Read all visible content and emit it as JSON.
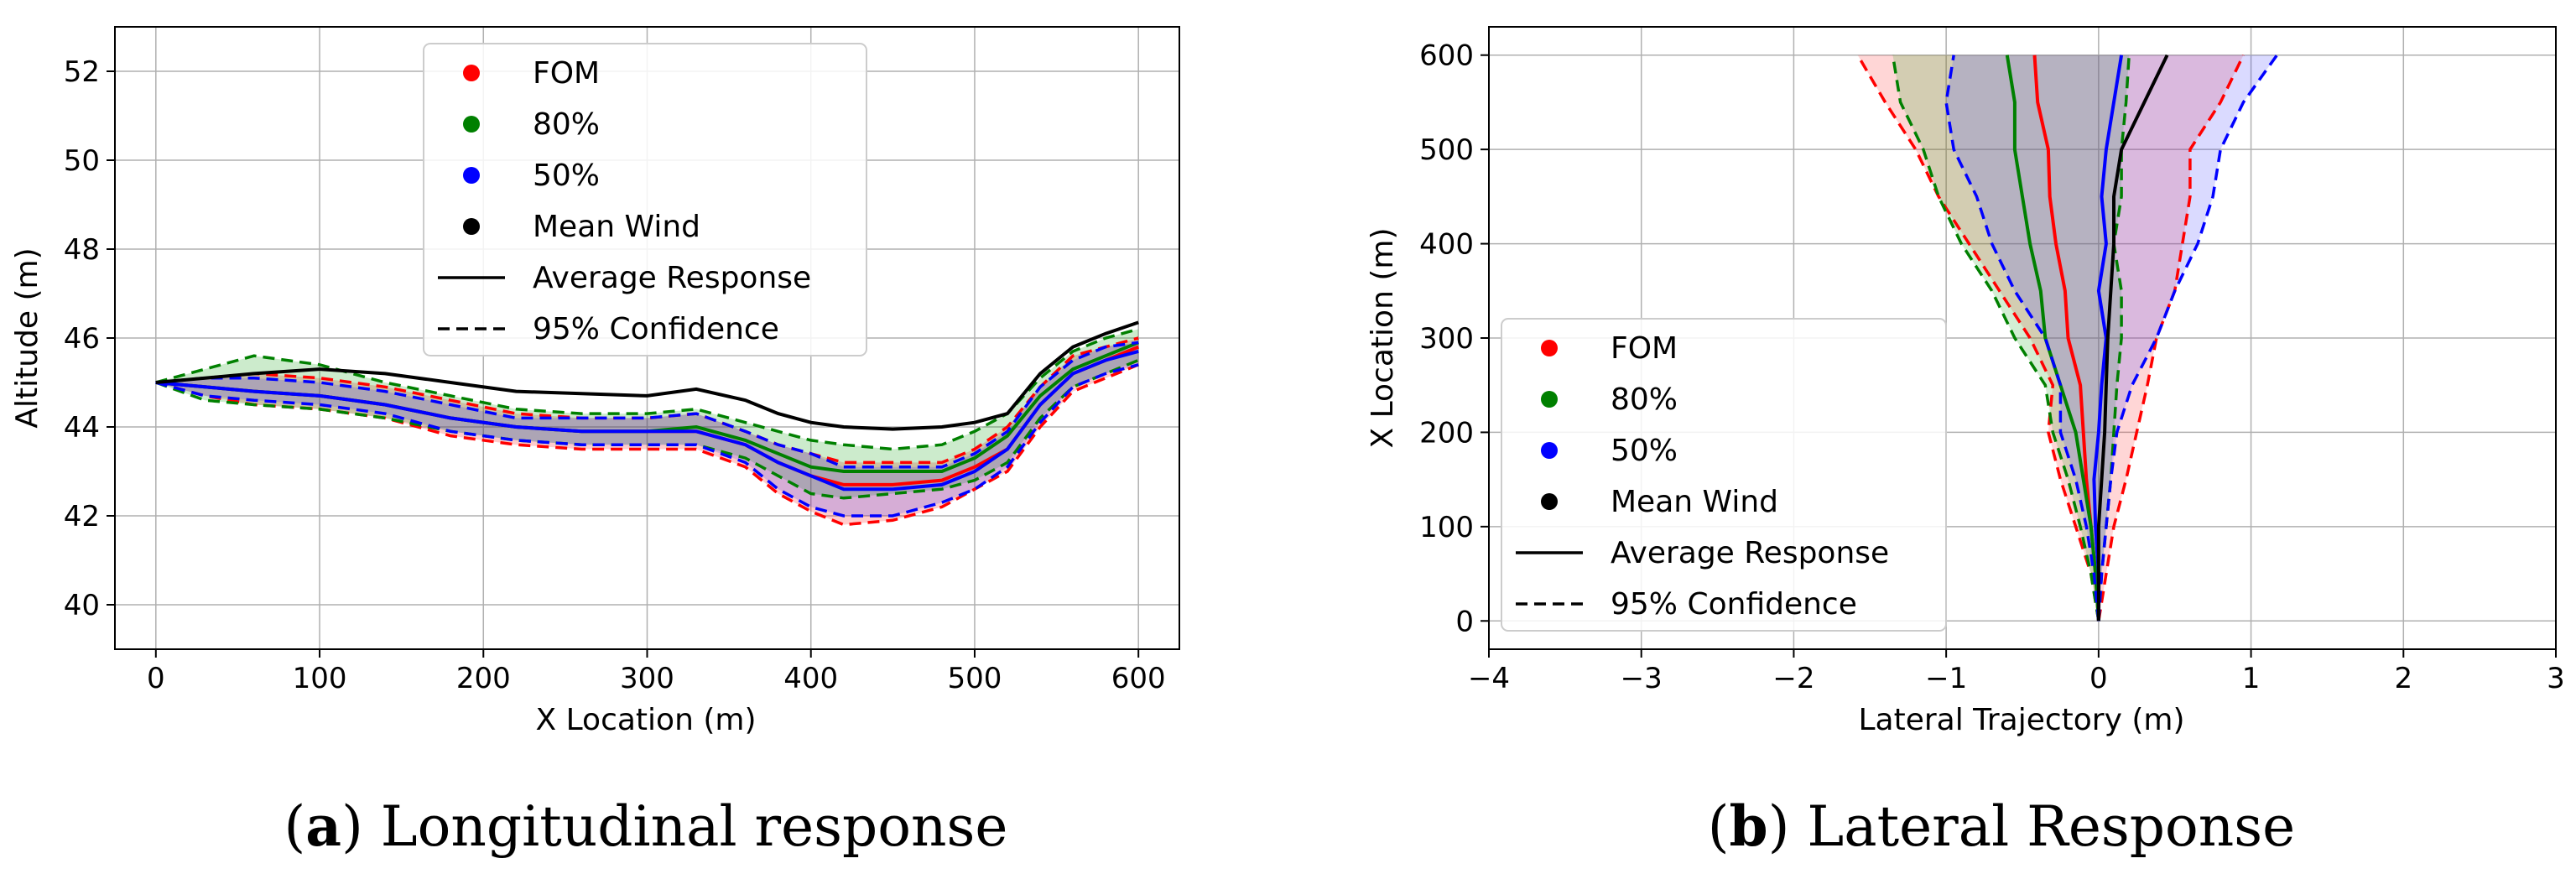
{
  "chart_data": [
    {
      "type": "line",
      "id": "longitudinal",
      "xlabel": "X Location (m)",
      "ylabel": "Altitude (m)",
      "xlim": [
        -25,
        625
      ],
      "ylim": [
        39,
        53
      ],
      "xticks": [
        0,
        100,
        200,
        300,
        400,
        500,
        600
      ],
      "yticks": [
        40,
        42,
        44,
        46,
        48,
        50,
        52
      ],
      "grid": true,
      "legend_position": "top-center",
      "caption_letter": "a",
      "caption_text": " Longitudinal response",
      "legend": [
        {
          "label": "FOM",
          "kind": "dot",
          "color": "#ff0000"
        },
        {
          "label": "80%",
          "kind": "dot",
          "color": "#008000"
        },
        {
          "label": "50%",
          "kind": "dot",
          "color": "#0000ff"
        },
        {
          "label": "Mean Wind",
          "kind": "dot",
          "color": "#000000"
        },
        {
          "label": "Average Response",
          "kind": "solid",
          "color": "#000000"
        },
        {
          "label": "95% Confidence",
          "kind": "dashed",
          "color": "#000000"
        }
      ],
      "x": [
        0,
        30,
        60,
        100,
        140,
        180,
        220,
        260,
        300,
        330,
        360,
        380,
        400,
        420,
        450,
        480,
        500,
        520,
        540,
        560,
        580,
        600
      ],
      "series": [
        {
          "name": "FOM",
          "color": "#ff0000",
          "fill": "#ff0000",
          "mean": [
            45.0,
            44.9,
            44.8,
            44.7,
            44.5,
            44.2,
            44.0,
            43.9,
            43.9,
            43.9,
            43.6,
            43.2,
            42.9,
            42.7,
            42.7,
            42.8,
            43.1,
            43.5,
            44.5,
            45.2,
            45.5,
            45.8
          ],
          "upper": [
            45.0,
            45.1,
            45.2,
            45.1,
            44.9,
            44.6,
            44.3,
            44.2,
            44.2,
            44.3,
            43.9,
            43.6,
            43.4,
            43.2,
            43.2,
            43.2,
            43.5,
            44.0,
            44.9,
            45.6,
            45.8,
            46.0
          ],
          "lower": [
            45.0,
            44.7,
            44.5,
            44.4,
            44.2,
            43.8,
            43.6,
            43.5,
            43.5,
            43.5,
            43.1,
            42.5,
            42.1,
            41.8,
            41.9,
            42.2,
            42.6,
            43.0,
            44.0,
            44.8,
            45.1,
            45.4
          ]
        },
        {
          "name": "80%",
          "color": "#008000",
          "fill": "#009900",
          "mean": [
            45.0,
            44.9,
            44.8,
            44.7,
            44.5,
            44.2,
            44.0,
            43.9,
            43.9,
            44.0,
            43.7,
            43.4,
            43.1,
            43.0,
            43.0,
            43.0,
            43.3,
            43.8,
            44.7,
            45.3,
            45.6,
            45.9
          ],
          "upper": [
            45.0,
            45.3,
            45.6,
            45.4,
            45.0,
            44.7,
            44.4,
            44.3,
            44.3,
            44.4,
            44.1,
            43.9,
            43.7,
            43.6,
            43.5,
            43.6,
            43.9,
            44.3,
            45.1,
            45.7,
            46.0,
            46.2
          ],
          "lower": [
            45.0,
            44.6,
            44.5,
            44.4,
            44.2,
            43.9,
            43.7,
            43.6,
            43.6,
            43.6,
            43.3,
            42.9,
            42.5,
            42.4,
            42.5,
            42.6,
            42.8,
            43.2,
            44.2,
            44.9,
            45.2,
            45.5
          ]
        },
        {
          "name": "50%",
          "color": "#0000ff",
          "fill": "#3333ff",
          "mean": [
            45.0,
            44.9,
            44.8,
            44.7,
            44.5,
            44.2,
            44.0,
            43.9,
            43.9,
            43.9,
            43.6,
            43.2,
            42.9,
            42.6,
            42.6,
            42.7,
            43.0,
            43.5,
            44.5,
            45.2,
            45.5,
            45.7
          ],
          "upper": [
            45.0,
            45.1,
            45.1,
            45.0,
            44.8,
            44.5,
            44.2,
            44.2,
            44.2,
            44.3,
            43.9,
            43.6,
            43.4,
            43.1,
            43.1,
            43.1,
            43.4,
            43.9,
            44.9,
            45.5,
            45.8,
            45.9
          ],
          "lower": [
            45.0,
            44.7,
            44.6,
            44.5,
            44.3,
            43.9,
            43.7,
            43.6,
            43.6,
            43.6,
            43.2,
            42.6,
            42.2,
            42.0,
            42.0,
            42.3,
            42.6,
            43.1,
            44.1,
            44.9,
            45.2,
            45.4
          ]
        },
        {
          "name": "Mean Wind",
          "color": "#000000",
          "mean": [
            45.0,
            45.1,
            45.2,
            45.3,
            45.2,
            45.0,
            44.8,
            44.75,
            44.7,
            44.85,
            44.6,
            44.3,
            44.1,
            44.0,
            43.95,
            44.0,
            44.1,
            44.3,
            45.2,
            45.8,
            46.1,
            46.35
          ]
        }
      ]
    },
    {
      "type": "line",
      "id": "lateral",
      "xlabel": "Lateral Trajectory (m)",
      "ylabel": "X Location (m)",
      "xlim": [
        -4,
        3
      ],
      "ylim": [
        -30,
        630
      ],
      "xticks": [
        -4,
        -3,
        -2,
        -1,
        0,
        1,
        2,
        3
      ],
      "xtick_labels": [
        "−4",
        "−3",
        "−2",
        "−1",
        "0",
        "1",
        "2",
        "3"
      ],
      "yticks": [
        0,
        100,
        200,
        300,
        400,
        500,
        600
      ],
      "grid": true,
      "legend_position": "lower-left",
      "caption_letter": "b",
      "caption_text": " Lateral Response",
      "legend": [
        {
          "label": "FOM",
          "kind": "dot",
          "color": "#ff0000"
        },
        {
          "label": "80%",
          "kind": "dot",
          "color": "#008000"
        },
        {
          "label": "50%",
          "kind": "dot",
          "color": "#0000ff"
        },
        {
          "label": "Mean Wind",
          "kind": "dot",
          "color": "#000000"
        },
        {
          "label": "Average Response",
          "kind": "solid",
          "color": "#000000"
        },
        {
          "label": "95% Confidence",
          "kind": "dashed",
          "color": "#000000"
        }
      ],
      "y": [
        0,
        50,
        100,
        150,
        200,
        250,
        300,
        350,
        400,
        450,
        500,
        550,
        600
      ],
      "series": [
        {
          "name": "FOM",
          "color": "#ff0000",
          "fill": "#ff3333",
          "mean": [
            0.0,
            -0.02,
            -0.05,
            -0.08,
            -0.1,
            -0.12,
            -0.2,
            -0.22,
            -0.28,
            -0.32,
            -0.33,
            -0.4,
            -0.42
          ],
          "upper": [
            0.0,
            0.05,
            0.1,
            0.18,
            0.25,
            0.32,
            0.38,
            0.5,
            0.55,
            0.6,
            0.6,
            0.8,
            0.95
          ],
          "lower": [
            0.0,
            -0.05,
            -0.15,
            -0.25,
            -0.33,
            -0.3,
            -0.45,
            -0.65,
            -0.85,
            -1.05,
            -1.2,
            -1.4,
            -1.58
          ]
        },
        {
          "name": "80%",
          "color": "#008000",
          "fill": "#22aa22",
          "mean": [
            0.0,
            -0.02,
            -0.05,
            -0.1,
            -0.15,
            -0.25,
            -0.35,
            -0.38,
            -0.45,
            -0.5,
            -0.55,
            -0.55,
            -0.6
          ],
          "upper": [
            0.0,
            0.02,
            0.05,
            0.08,
            0.1,
            0.12,
            0.15,
            0.15,
            0.1,
            0.15,
            0.15,
            0.18,
            0.2
          ],
          "lower": [
            0.0,
            -0.05,
            -0.12,
            -0.2,
            -0.3,
            -0.35,
            -0.55,
            -0.7,
            -0.9,
            -1.05,
            -1.15,
            -1.3,
            -1.35
          ]
        },
        {
          "name": "50%",
          "color": "#0000ff",
          "fill": "#4444ff",
          "mean": [
            0.0,
            0.0,
            -0.02,
            -0.03,
            0.0,
            0.02,
            0.05,
            0.0,
            0.05,
            0.02,
            0.05,
            0.1,
            0.15
          ],
          "upper": [
            0.0,
            0.02,
            0.05,
            0.08,
            0.12,
            0.22,
            0.38,
            0.5,
            0.65,
            0.75,
            0.8,
            0.95,
            1.17
          ],
          "lower": [
            0.0,
            -0.03,
            -0.08,
            -0.15,
            -0.25,
            -0.25,
            -0.35,
            -0.55,
            -0.7,
            -0.8,
            -0.95,
            -1.0,
            -0.95
          ]
        },
        {
          "name": "Mean Wind",
          "color": "#000000",
          "mean": [
            0.0,
            0.0,
            0.0,
            0.02,
            0.04,
            0.05,
            0.06,
            0.08,
            0.1,
            0.1,
            0.15,
            0.3,
            0.45
          ]
        }
      ]
    }
  ]
}
